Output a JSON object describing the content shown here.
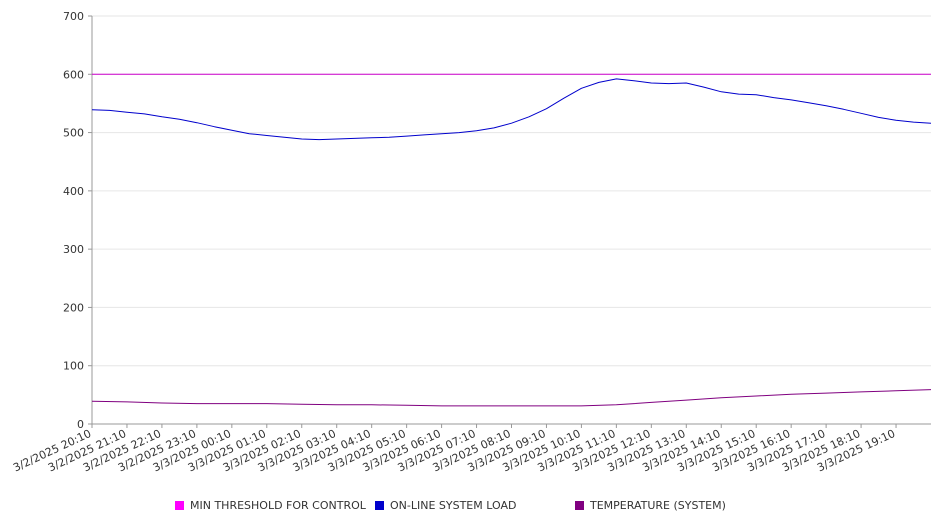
{
  "chart_data": {
    "type": "line",
    "title": "",
    "xlabel": "",
    "ylabel": "",
    "ylim": [
      0,
      700
    ],
    "yticks": [
      0,
      100,
      200,
      300,
      400,
      500,
      600,
      700
    ],
    "xlim": [
      "3/2/2025 20:10",
      "3/3/2025 20:10"
    ],
    "x_tick_labels": [
      "3/2/2025 20:10",
      "3/2/2025 21:10",
      "3/2/2025 22:10",
      "3/2/2025 23:10",
      "3/3/2025 00:10",
      "3/3/2025 01:10",
      "3/3/2025 02:10",
      "3/3/2025 03:10",
      "3/3/2025 04:10",
      "3/3/2025 05:10",
      "3/3/2025 06:10",
      "3/3/2025 07:10",
      "3/3/2025 08:10",
      "3/3/2025 09:10",
      "3/3/2025 10:10",
      "3/3/2025 11:10",
      "3/3/2025 12:10",
      "3/3/2025 13:10",
      "3/3/2025 14:10",
      "3/3/2025 15:10",
      "3/3/2025 16:10",
      "3/3/2025 17:10",
      "3/3/2025 18:10",
      "3/3/2025 19:10"
    ],
    "x_unit": "hours",
    "grid": true,
    "legend_position": "bottom",
    "series": [
      {
        "name": "MIN THRESHOLD FOR CONTROL",
        "color": "#cc00cc",
        "points": [
          [
            0,
            600
          ],
          [
            24,
            600
          ]
        ]
      },
      {
        "name": "ON-LINE SYSTEM LOAD",
        "color": "#0000cc",
        "points": [
          [
            0,
            539
          ],
          [
            0.5,
            538
          ],
          [
            1,
            535
          ],
          [
            1.5,
            532
          ],
          [
            2,
            527
          ],
          [
            2.5,
            523
          ],
          [
            3,
            517
          ],
          [
            3.5,
            510
          ],
          [
            4,
            504
          ],
          [
            4.5,
            498
          ],
          [
            5,
            495
          ],
          [
            5.5,
            492
          ],
          [
            6,
            489
          ],
          [
            6.5,
            488
          ],
          [
            7,
            489
          ],
          [
            7.5,
            490
          ],
          [
            8,
            491
          ],
          [
            8.5,
            492
          ],
          [
            9,
            494
          ],
          [
            9.5,
            496
          ],
          [
            10,
            498
          ],
          [
            10.5,
            500
          ],
          [
            11,
            503
          ],
          [
            11.5,
            508
          ],
          [
            12,
            516
          ],
          [
            12.5,
            527
          ],
          [
            13,
            541
          ],
          [
            13.5,
            559
          ],
          [
            14,
            576
          ],
          [
            14.5,
            586
          ],
          [
            15,
            592
          ],
          [
            15.5,
            589
          ],
          [
            16,
            585
          ],
          [
            16.5,
            584
          ],
          [
            17,
            585
          ],
          [
            17.5,
            578
          ],
          [
            18,
            570
          ],
          [
            18.5,
            566
          ],
          [
            19,
            565
          ],
          [
            19.5,
            560
          ],
          [
            20,
            556
          ],
          [
            20.5,
            551
          ],
          [
            21,
            546
          ],
          [
            21.5,
            540
          ],
          [
            22,
            533
          ],
          [
            22.5,
            526
          ],
          [
            23,
            521
          ],
          [
            23.5,
            518
          ],
          [
            24,
            516
          ]
        ]
      },
      {
        "name": "TEMPERATURE (SYSTEM)",
        "color": "#800080",
        "points": [
          [
            0,
            39
          ],
          [
            1,
            38
          ],
          [
            2,
            36
          ],
          [
            3,
            35
          ],
          [
            4,
            35
          ],
          [
            5,
            35
          ],
          [
            6,
            34
          ],
          [
            7,
            33
          ],
          [
            8,
            33
          ],
          [
            9,
            32
          ],
          [
            10,
            31
          ],
          [
            11,
            31
          ],
          [
            12,
            31
          ],
          [
            13,
            31
          ],
          [
            14,
            31
          ],
          [
            15,
            33
          ],
          [
            16,
            37
          ],
          [
            17,
            41
          ],
          [
            18,
            45
          ],
          [
            19,
            48
          ],
          [
            20,
            51
          ],
          [
            21,
            53
          ],
          [
            22,
            55
          ],
          [
            23,
            57
          ],
          [
            24,
            59
          ]
        ]
      }
    ]
  }
}
